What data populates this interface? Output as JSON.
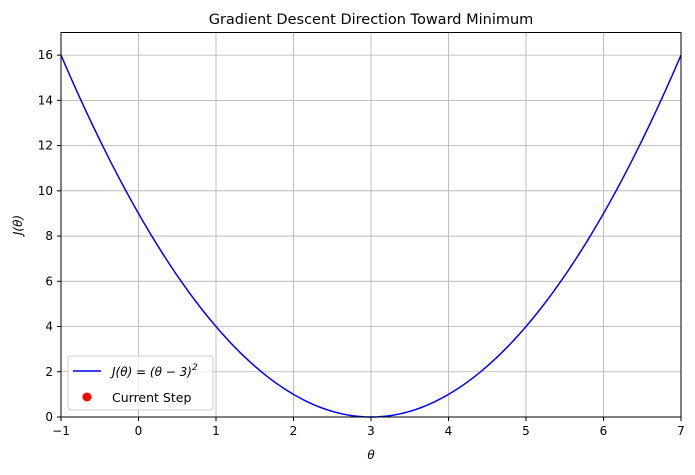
{
  "chart_data": {
    "type": "line",
    "title": "Gradient Descent Direction Toward Minimum",
    "xlabel": "θ",
    "ylabel": "J(θ)",
    "xlim": [
      -1,
      7
    ],
    "ylim": [
      0,
      17
    ],
    "xticks": [
      -1,
      0,
      1,
      2,
      3,
      4,
      5,
      6,
      7
    ],
    "yticks": [
      0,
      2,
      4,
      6,
      8,
      10,
      12,
      14,
      16
    ],
    "grid": true,
    "legend_position": "lower-left",
    "series": [
      {
        "name": "J(θ) = (θ − 3)",
        "name_superscript": "2",
        "kind": "line",
        "color": "#0000ff",
        "function": "(θ-3)^2",
        "x": [
          -1,
          -0.5,
          0,
          0.5,
          1,
          1.5,
          2,
          2.5,
          3,
          3.5,
          4,
          4.5,
          5,
          5.5,
          6,
          6.5,
          7
        ],
        "y": [
          16,
          12.25,
          9,
          6.25,
          4,
          2.25,
          1,
          0.25,
          0,
          0.25,
          1,
          2.25,
          4,
          6.25,
          9,
          12.25,
          16
        ]
      },
      {
        "name": "Current Step",
        "kind": "marker",
        "color": "#ff0000",
        "x": [],
        "y": []
      }
    ]
  }
}
